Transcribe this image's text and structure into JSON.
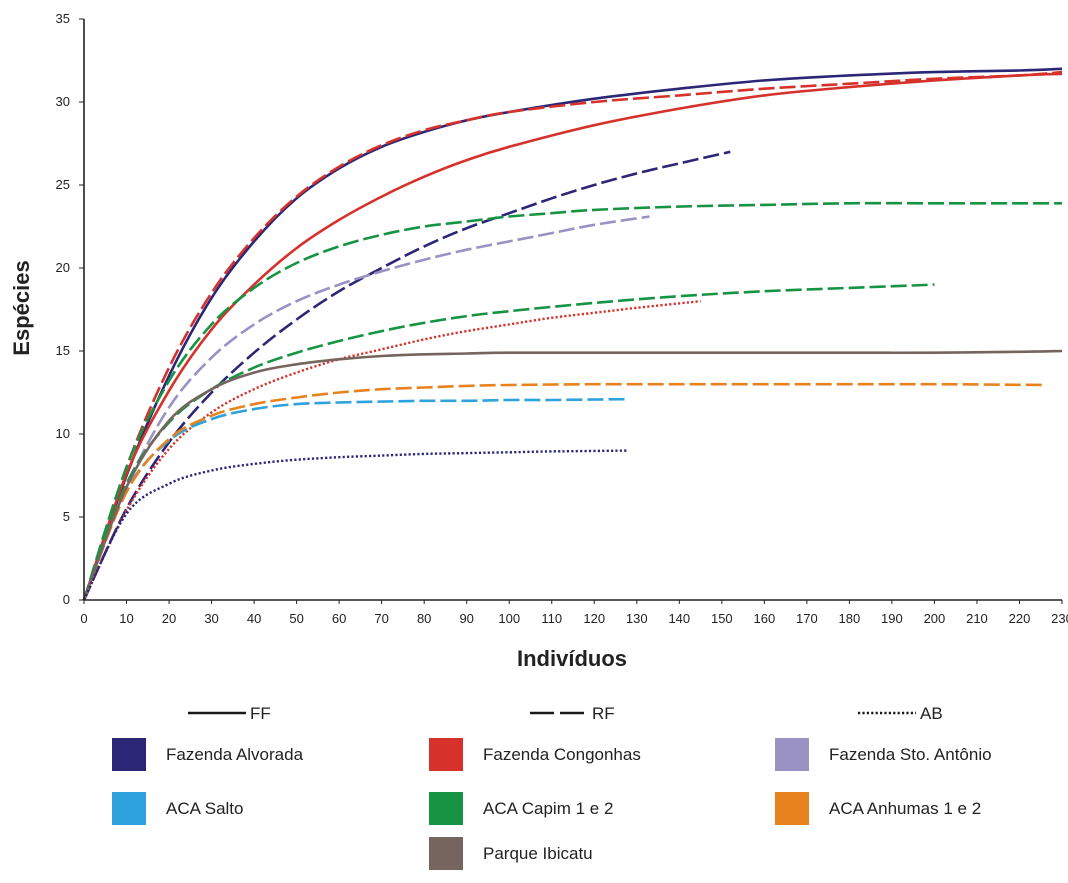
{
  "chart_data": {
    "type": "line",
    "xlabel": "Indivíduos",
    "ylabel": "Espécies",
    "xlim": [
      0,
      230
    ],
    "ylim": [
      0,
      35
    ],
    "xticks": [
      0,
      10,
      20,
      30,
      40,
      50,
      60,
      70,
      80,
      90,
      100,
      110,
      120,
      130,
      140,
      150,
      160,
      170,
      180,
      190,
      200,
      210,
      220,
      230
    ],
    "yticks": [
      0,
      5,
      10,
      15,
      20,
      25,
      30,
      35
    ],
    "grid": false,
    "line_styles": [
      {
        "key": "solid",
        "label": "FF"
      },
      {
        "key": "dashed",
        "label": "RF"
      },
      {
        "key": "dotted",
        "label": "AB"
      }
    ],
    "sites": [
      {
        "name": "Fazenda Alvorada",
        "color": "#2b2676"
      },
      {
        "name": "Fazenda Congonhas",
        "color": "#d6312b"
      },
      {
        "name": "Fazenda Sto. Antônio",
        "color": "#9a92c4"
      },
      {
        "name": "ACA Salto",
        "color": "#2ea2dc"
      },
      {
        "name": "ACA Capim 1 e 2",
        "color": "#179443"
      },
      {
        "name": "ACA Anhumas 1 e 2",
        "color": "#e8821e"
      },
      {
        "name": "Parque Ibicatu",
        "color": "#75655e"
      }
    ],
    "series": [
      {
        "site": 0,
        "style": "solid",
        "x": [
          0,
          10,
          20,
          30,
          40,
          50,
          60,
          70,
          80,
          90,
          100,
          120,
          140,
          160,
          180,
          200,
          220,
          230
        ],
        "y": [
          0,
          7.5,
          13.5,
          18.2,
          21.6,
          24.2,
          26,
          27.3,
          28.2,
          28.9,
          29.4,
          30.2,
          30.8,
          31.3,
          31.6,
          31.8,
          31.9,
          32
        ]
      },
      {
        "site": 0,
        "style": "dashed",
        "x": [
          0,
          10,
          20,
          30,
          40,
          50,
          60,
          70,
          80,
          90,
          100,
          110,
          120,
          130,
          140,
          152
        ],
        "y": [
          0,
          5.5,
          9.5,
          12.5,
          14.9,
          16.9,
          18.6,
          20,
          21.3,
          22.4,
          23.3,
          24.2,
          25,
          25.7,
          26.3,
          27
        ]
      },
      {
        "site": 1,
        "style": "solid",
        "x": [
          0,
          10,
          20,
          30,
          40,
          50,
          60,
          70,
          80,
          90,
          100,
          120,
          140,
          160,
          180,
          200,
          220,
          230
        ],
        "y": [
          0,
          7.6,
          12.6,
          16.3,
          19,
          21.2,
          22.9,
          24.3,
          25.5,
          26.5,
          27.3,
          28.6,
          29.6,
          30.4,
          30.9,
          31.3,
          31.6,
          31.7
        ]
      },
      {
        "site": 1,
        "style": "dashed",
        "x": [
          0,
          10,
          20,
          30,
          40,
          50,
          60,
          70,
          80,
          90,
          100,
          120,
          140,
          160,
          180,
          200,
          220,
          230
        ],
        "y": [
          0,
          8,
          14,
          18.5,
          21.8,
          24.3,
          26.1,
          27.4,
          28.3,
          28.9,
          29.4,
          30,
          30.4,
          30.8,
          31.1,
          31.4,
          31.6,
          31.8
        ]
      },
      {
        "site": 1,
        "style": "dotted",
        "x": [
          0,
          10,
          20,
          30,
          40,
          50,
          60,
          70,
          80,
          90,
          100,
          110,
          120,
          130,
          145
        ],
        "y": [
          0,
          5.4,
          9.1,
          11.3,
          12.7,
          13.7,
          14.5,
          15.1,
          15.7,
          16.2,
          16.6,
          17,
          17.3,
          17.6,
          18
        ]
      },
      {
        "site": 2,
        "style": "dashed",
        "x": [
          0,
          10,
          20,
          30,
          40,
          50,
          60,
          70,
          80,
          90,
          100,
          110,
          120,
          133
        ],
        "y": [
          0,
          6.8,
          11.6,
          14.6,
          16.6,
          18,
          19,
          19.8,
          20.5,
          21.1,
          21.6,
          22.1,
          22.6,
          23.1
        ]
      },
      {
        "site": 3,
        "style": "dashed",
        "x": [
          0,
          10,
          20,
          30,
          40,
          50,
          60,
          70,
          80,
          90,
          100,
          110,
          128
        ],
        "y": [
          0,
          6.6,
          9.6,
          10.9,
          11.5,
          11.8,
          11.9,
          11.95,
          12,
          12,
          12.05,
          12.05,
          12.1
        ]
      },
      {
        "site": 4,
        "style": "dashed",
        "x": [
          0,
          10,
          20,
          30,
          40,
          50,
          60,
          70,
          80,
          90,
          100,
          110,
          120,
          140,
          160,
          180,
          200,
          220,
          230
        ],
        "y": [
          0,
          8,
          13.2,
          16.6,
          18.8,
          20.3,
          21.3,
          22,
          22.5,
          22.8,
          23.1,
          23.3,
          23.5,
          23.7,
          23.8,
          23.9,
          23.9,
          23.9,
          23.9
        ]
      },
      {
        "site": 4,
        "style": "dashed",
        "x": [
          0,
          10,
          20,
          30,
          40,
          50,
          60,
          70,
          80,
          90,
          100,
          120,
          140,
          160,
          180,
          200
        ],
        "y": [
          0,
          7,
          10.7,
          12.7,
          14,
          14.9,
          15.6,
          16.2,
          16.7,
          17.1,
          17.4,
          17.9,
          18.3,
          18.6,
          18.8,
          19
        ]
      },
      {
        "site": 5,
        "style": "dashed",
        "x": [
          0,
          10,
          20,
          30,
          40,
          50,
          60,
          70,
          80,
          90,
          100,
          120,
          140,
          160,
          180,
          200,
          226
        ],
        "y": [
          0,
          6.5,
          9.7,
          11.1,
          11.8,
          12.2,
          12.5,
          12.7,
          12.8,
          12.9,
          12.95,
          13,
          13,
          13,
          13,
          13,
          12.95
        ]
      },
      {
        "site": 6,
        "style": "solid",
        "x": [
          0,
          10,
          20,
          30,
          40,
          50,
          60,
          70,
          80,
          90,
          100,
          120,
          140,
          160,
          180,
          200,
          220,
          230
        ],
        "y": [
          0,
          6.8,
          10.8,
          12.7,
          13.7,
          14.2,
          14.5,
          14.7,
          14.8,
          14.85,
          14.9,
          14.9,
          14.9,
          14.9,
          14.9,
          14.9,
          14.95,
          15
        ]
      },
      {
        "site": 0,
        "style": "dotted",
        "x": [
          0,
          10,
          20,
          30,
          40,
          50,
          60,
          70,
          80,
          90,
          100,
          110,
          128
        ],
        "y": [
          0,
          5.2,
          7,
          7.8,
          8.2,
          8.45,
          8.6,
          8.7,
          8.8,
          8.85,
          8.9,
          8.95,
          9
        ]
      }
    ]
  }
}
